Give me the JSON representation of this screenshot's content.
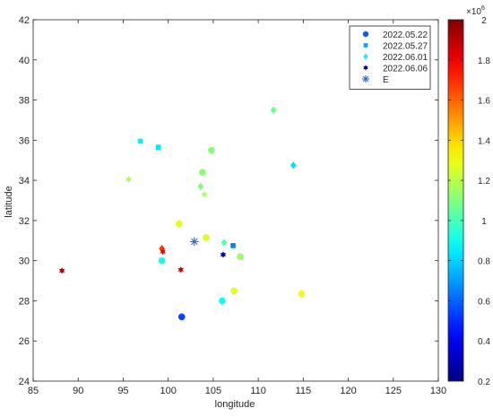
{
  "chart_data": {
    "type": "scatter",
    "title": "",
    "xlabel": "longitude",
    "ylabel": "latitude",
    "xlim": [
      85,
      130
    ],
    "ylim": [
      24,
      42
    ],
    "xticks": [
      85,
      90,
      95,
      100,
      105,
      110,
      115,
      120,
      125,
      130
    ],
    "yticks": [
      24,
      26,
      28,
      30,
      32,
      34,
      36,
      38,
      40,
      42
    ],
    "grid": false,
    "legend_position": "top-right",
    "colorbar": {
      "colormap": "jet",
      "clim": [
        0.2,
        2
      ],
      "ticks": [
        0.2,
        0.4,
        0.6,
        0.8,
        1,
        1.2,
        1.4,
        1.6,
        1.8,
        2
      ],
      "exponent_label": "×10",
      "exponent": "6"
    },
    "series": [
      {
        "name": "2022.05.22",
        "marker": "circle",
        "legend_color": "#1560d8",
        "points": [
          {
            "x": 101.5,
            "y": 27.2,
            "value": 0.55
          },
          {
            "x": 101.2,
            "y": 31.85,
            "value": 1.28
          },
          {
            "x": 104.2,
            "y": 31.15,
            "value": 1.25
          },
          {
            "x": 107.3,
            "y": 28.5,
            "value": 1.28
          },
          {
            "x": 114.8,
            "y": 28.35,
            "value": 1.3
          },
          {
            "x": 99.3,
            "y": 30.0,
            "value": 0.92
          },
          {
            "x": 106.0,
            "y": 28.0,
            "value": 0.9
          },
          {
            "x": 108.0,
            "y": 30.2,
            "value": 1.15
          },
          {
            "x": 103.8,
            "y": 34.4,
            "value": 1.12
          },
          {
            "x": 104.8,
            "y": 35.5,
            "value": 1.12
          }
        ]
      },
      {
        "name": "2022.05.27",
        "marker": "square",
        "legend_color": "#1aa3f0",
        "points": [
          {
            "x": 96.9,
            "y": 35.95,
            "value": 0.85
          },
          {
            "x": 98.9,
            "y": 35.65,
            "value": 0.83
          },
          {
            "x": 107.2,
            "y": 30.75,
            "value": 0.65
          }
        ]
      },
      {
        "name": "2022.06.01",
        "marker": "diamond",
        "legend_color": "#2ee8f0",
        "points": [
          {
            "x": 113.9,
            "y": 34.75,
            "value": 0.82
          },
          {
            "x": 103.6,
            "y": 33.7,
            "value": 1.1
          },
          {
            "x": 106.2,
            "y": 30.9,
            "value": 1.02
          },
          {
            "x": 111.7,
            "y": 37.5,
            "value": 1.05
          },
          {
            "x": 99.3,
            "y": 30.6,
            "value": 1.68
          }
        ]
      },
      {
        "name": "2022.06.06",
        "marker": "hexagram",
        "legend_color": "#0a0a6b",
        "points": [
          {
            "x": 88.2,
            "y": 29.5,
            "value": 1.92
          },
          {
            "x": 99.4,
            "y": 30.45,
            "value": 1.8
          },
          {
            "x": 101.4,
            "y": 29.55,
            "value": 1.85
          },
          {
            "x": 106.1,
            "y": 30.3,
            "value": 0.25
          },
          {
            "x": 95.6,
            "y": 34.05,
            "value": 1.18
          },
          {
            "x": 104.0,
            "y": 33.3,
            "value": 1.18
          }
        ]
      },
      {
        "name": "E",
        "marker": "asterisk",
        "legend_color": "#2f6bc8",
        "points": [
          {
            "x": 102.9,
            "y": 30.95,
            "color": "#2f6bc8"
          }
        ]
      }
    ]
  }
}
